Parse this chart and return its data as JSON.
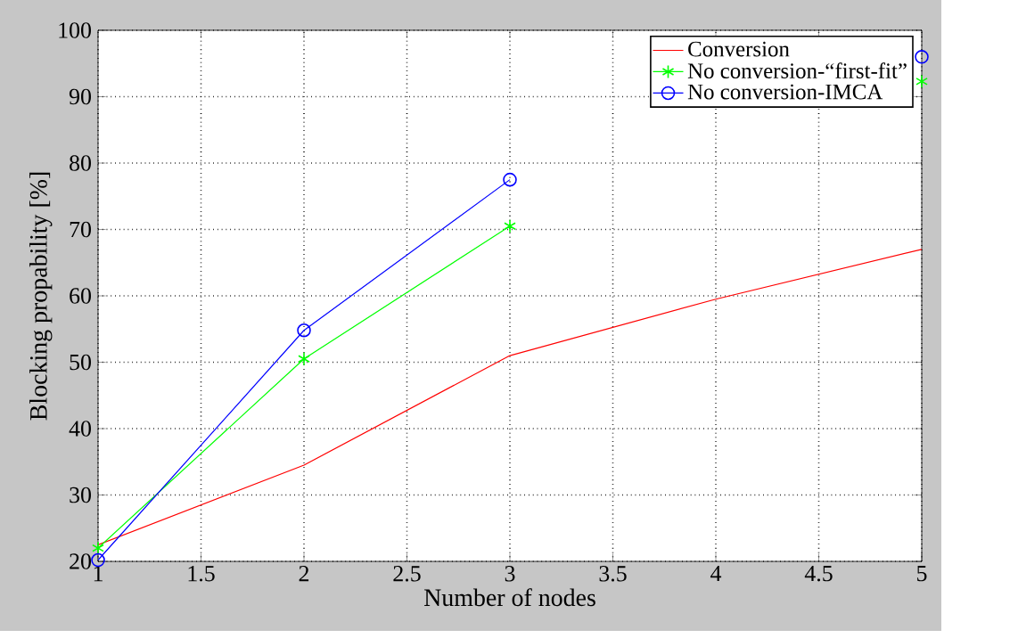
{
  "chart_data": {
    "type": "line",
    "xlabel": "Number of nodes",
    "ylabel": "Blocking propability [%]",
    "x": [
      1,
      2,
      3,
      4,
      5
    ],
    "series": [
      {
        "name": "Conversion",
        "color": "#ff0000",
        "marker": "none",
        "values": [
          22.5,
          34.5,
          51,
          59.5,
          67
        ]
      },
      {
        "name": "No conversion-“first-fit”",
        "color": "#00ff00",
        "marker": "cross",
        "values": [
          22,
          50.5,
          70.5,
          null,
          92.3
        ]
      },
      {
        "name": "No conversion-IMCA",
        "color": "#0000ff",
        "marker": "circle",
        "values": [
          20.2,
          54.8,
          77.5,
          null,
          96
        ]
      }
    ],
    "xlim": [
      1,
      5
    ],
    "xticks": [
      1,
      1.5,
      2,
      2.5,
      3,
      3.5,
      4,
      4.5,
      5
    ],
    "ylim": [
      20,
      100
    ],
    "yticks": [
      20,
      30,
      40,
      50,
      60,
      70,
      80,
      90,
      100
    ],
    "grid": true,
    "legend": "top right",
    "line_style": "solid"
  }
}
